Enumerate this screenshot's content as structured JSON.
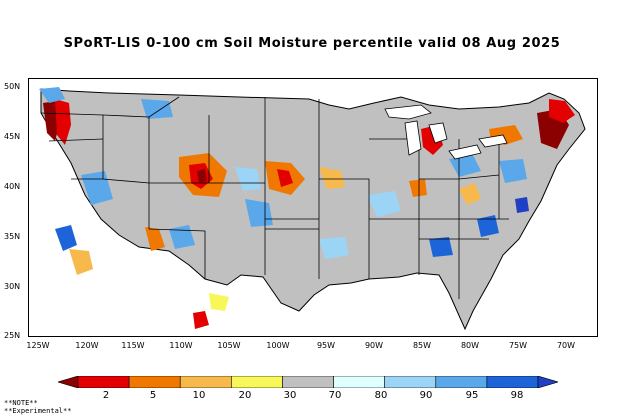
{
  "title": "SPoRT-LIS 0-100 cm Soil Moisture percentile valid 08 Aug 2025",
  "lat_labels": [
    "50N",
    "45N",
    "40N",
    "35N",
    "30N",
    "25N"
  ],
  "lon_labels": [
    "125W",
    "120W",
    "115W",
    "110W",
    "105W",
    "100W",
    "95W",
    "90W",
    "85W",
    "80W",
    "75W",
    "70W"
  ],
  "colorbar": {
    "ticks": [
      "2",
      "5",
      "10",
      "20",
      "30",
      "70",
      "80",
      "90",
      "95",
      "98"
    ],
    "colors": [
      "#8b0000",
      "#e30000",
      "#f07800",
      "#f7b94c",
      "#f7f75a",
      "#c0c0c0",
      "#e0ffff",
      "#9cd4f6",
      "#5aa8ea",
      "#1c64d8",
      "#1f3fc4"
    ]
  },
  "notes": [
    "**NOTE**",
    "**Experimental**"
  ],
  "map_colors": {
    "ocean": "#ffffff",
    "land": "#c0c0c0",
    "boundary": "#000000"
  }
}
